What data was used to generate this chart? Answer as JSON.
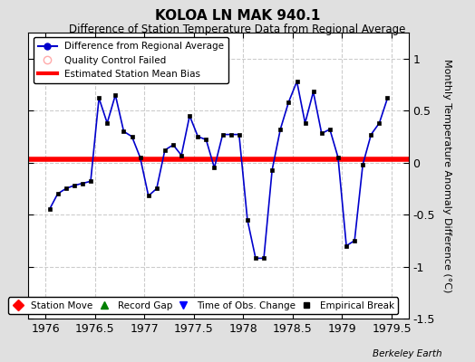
{
  "title": "KOLOA LN MAK 940.1",
  "subtitle": "Difference of Station Temperature Data from Regional Average",
  "ylabel": "Monthly Temperature Anomaly Difference (°C)",
  "xlim": [
    1975.83,
    1979.67
  ],
  "ylim": [
    -1.5,
    1.25
  ],
  "yticks": [
    -1.5,
    -1.0,
    -0.5,
    0.0,
    0.5,
    1.0
  ],
  "xticks": [
    1976,
    1976.5,
    1977,
    1977.5,
    1978,
    1978.5,
    1979,
    1979.5
  ],
  "xtick_labels": [
    "1976",
    "1976.5",
    "1977",
    "1977.5",
    "1978",
    "1978.5",
    "1979",
    "1979.5"
  ],
  "ytick_labels": [
    "-1.5",
    "-1",
    "-0.5",
    "0",
    "0.5",
    "1"
  ],
  "bias_value": 0.03,
  "fig_bg_color": "#e0e0e0",
  "plot_bg_color": "#ffffff",
  "line_color": "#0000cc",
  "bias_color": "#ff0000",
  "watermark": "Berkeley Earth",
  "data_x": [
    1976.042,
    1976.125,
    1976.208,
    1976.292,
    1976.375,
    1976.458,
    1976.542,
    1976.625,
    1976.708,
    1976.792,
    1976.875,
    1976.958,
    1977.042,
    1977.125,
    1977.208,
    1977.292,
    1977.375,
    1977.458,
    1977.542,
    1977.625,
    1977.708,
    1977.792,
    1977.875,
    1977.958,
    1978.042,
    1978.125,
    1978.208,
    1978.292,
    1978.375,
    1978.458,
    1978.542,
    1978.625,
    1978.708,
    1978.792,
    1978.875,
    1978.958,
    1979.042,
    1979.125,
    1979.208,
    1979.292,
    1979.375,
    1979.458
  ],
  "data_y": [
    -0.45,
    -0.3,
    -0.25,
    -0.22,
    -0.2,
    -0.18,
    0.62,
    0.38,
    0.65,
    0.3,
    0.25,
    0.05,
    -0.32,
    -0.25,
    0.12,
    0.17,
    0.07,
    0.45,
    0.25,
    0.22,
    -0.05,
    0.27,
    0.27,
    0.27,
    -0.55,
    -0.92,
    -0.92,
    -0.07,
    0.32,
    0.58,
    0.78,
    0.38,
    0.68,
    0.28,
    0.32,
    0.05,
    -0.8,
    -0.75,
    -0.02,
    0.27,
    0.38,
    0.62
  ]
}
